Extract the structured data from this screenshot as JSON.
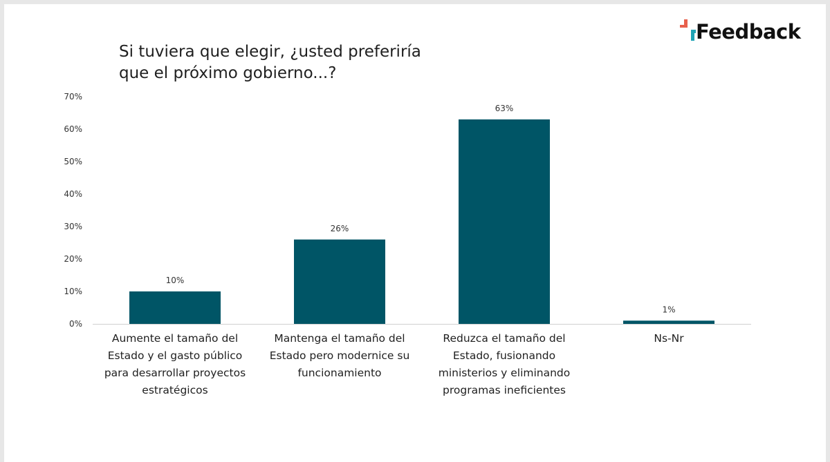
{
  "brand": {
    "name": "Feedback",
    "accent": "#e8604c",
    "accent2": "#1fa3b5"
  },
  "colors": {
    "bar": "#005566",
    "axis": "#d0d0d0"
  },
  "chart_data": {
    "type": "bar",
    "title_lines": [
      "Si tuviera que elegir, ¿usted preferiría",
      "que el próximo gobierno...?"
    ],
    "categories": [
      [
        "Aumente el tamaño del",
        "Estado y el gasto público",
        "para desarrollar proyectos",
        "estratégicos"
      ],
      [
        "Mantenga el tamaño del",
        "Estado pero modernice su",
        "funcionamiento"
      ],
      [
        "Reduzca el tamaño del",
        "Estado, fusionando",
        "ministerios y eliminando",
        "programas ineficientes"
      ],
      [
        "Ns-Nr"
      ]
    ],
    "values": [
      10,
      26,
      63,
      1
    ],
    "value_labels": [
      "10%",
      "26%",
      "63%",
      "1%"
    ],
    "yticks": [
      {
        "value": 0,
        "label": "0%"
      },
      {
        "value": 10,
        "label": "10%"
      },
      {
        "value": 20,
        "label": "20%"
      },
      {
        "value": 30,
        "label": "30%"
      },
      {
        "value": 40,
        "label": "40%"
      },
      {
        "value": 50,
        "label": "50%"
      },
      {
        "value": 60,
        "label": "60%"
      },
      {
        "value": 70,
        "label": "70%"
      }
    ],
    "ylim": [
      0,
      70
    ],
    "grid": false,
    "legend": "none"
  }
}
